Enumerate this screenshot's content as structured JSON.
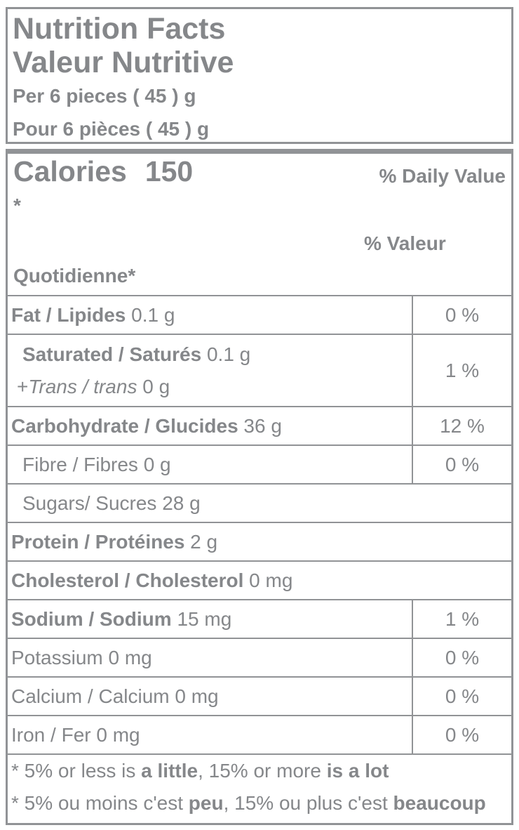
{
  "colors": {
    "text": "#85878a",
    "border": "#919396",
    "background": "#ffffff"
  },
  "header": {
    "title_en": "Nutrition Facts",
    "title_fr": "Valeur Nutritive",
    "serving_en": "Per 6 pieces ( 45 ) g",
    "serving_fr": "Pour 6 pièces ( 45 ) g"
  },
  "calories": {
    "label": "Calories",
    "value": "150"
  },
  "daily_value": {
    "en_line1": "% Daily Value",
    "en_line2": "*",
    "fr_line1": "% Valeur",
    "fr_line2": "Quotidienne*"
  },
  "table": {
    "rows": [
      {
        "id": "fat",
        "label_bold": "Fat / Lipides",
        "label_rest": " 0.1 g",
        "dv": "0 %"
      },
      {
        "id": "saturated-trans",
        "line1_bold": "Saturated / Saturés",
        "line1_rest": " 0.1 g",
        "line2_prefix": "+",
        "line2_italic": "Trans / trans",
        "line2_rest": " 0 g",
        "dv": "1 %"
      },
      {
        "id": "carbohydrate",
        "label_bold": "Carbohydrate / Glucides",
        "label_rest": " 36 g",
        "dv": "12 %"
      },
      {
        "id": "fibre",
        "label_plain": "Fibre / Fibres 0 g",
        "dv": "0 %"
      },
      {
        "id": "sugars",
        "label_plain": "Sugars/ Sucres 28 g"
      },
      {
        "id": "protein",
        "label_bold": "Protein / Protéines",
        "label_rest": " 2 g"
      },
      {
        "id": "cholesterol",
        "label_bold": "Cholesterol / Cholesterol",
        "label_rest": " 0 mg"
      },
      {
        "id": "sodium",
        "label_bold": "Sodium / Sodium",
        "label_rest": " 15 mg",
        "dv": "1 %"
      },
      {
        "id": "potassium",
        "label_plain": "Potassium 0 mg",
        "dv": "0 %"
      },
      {
        "id": "calcium",
        "label_plain": "Calcium / Calcium 0 mg",
        "dv": "0 %"
      },
      {
        "id": "iron",
        "label_plain": "Iron / Fer 0 mg",
        "dv": "0 %"
      }
    ]
  },
  "footnotes": {
    "en": {
      "pre": "* 5% or less is ",
      "bold1": "a little",
      "mid": ", 15% or more ",
      "bold2": "is a lot"
    },
    "fr": {
      "pre": "* 5% ou moins c'est ",
      "bold1": "peu",
      "mid": ", 15% ou plus c'est ",
      "bold2": "beaucoup"
    }
  }
}
